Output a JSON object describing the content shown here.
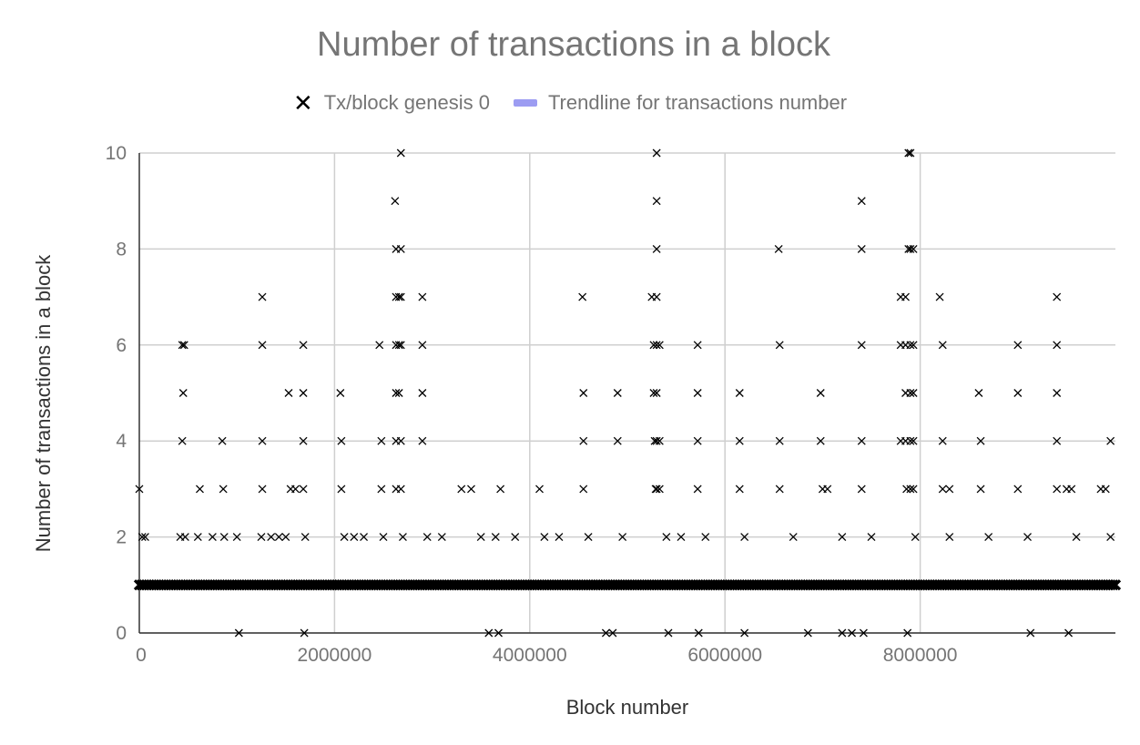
{
  "chart_data": {
    "type": "scatter",
    "title": "Number of transactions in a block",
    "xlabel": "Block number",
    "ylabel": "Number of transactions in a block",
    "xlim": [
      0,
      10000000
    ],
    "ylim": [
      0,
      10
    ],
    "x_ticks": [
      "0",
      "2000000",
      "4000000",
      "6000000",
      "8000000"
    ],
    "y_ticks": [
      "0",
      "2",
      "4",
      "6",
      "8",
      "10"
    ],
    "grid": true,
    "legend_position": "top",
    "legend": [
      {
        "label": "Tx/block genesis 0",
        "marker": "x",
        "color": "#000000"
      },
      {
        "label": "Trendline for transactions number",
        "marker": "line",
        "color": "#9c9cf2"
      }
    ],
    "series": [
      {
        "name": "Tx/block genesis 0",
        "baseline_value": 1,
        "points": [
          [
            0,
            3
          ],
          [
            10000,
            1
          ],
          [
            30000,
            2
          ],
          [
            60000,
            2
          ],
          [
            440000,
            6
          ],
          [
            460000,
            6
          ],
          [
            450000,
            5
          ],
          [
            440000,
            4
          ],
          [
            420000,
            2
          ],
          [
            470000,
            2
          ],
          [
            620000,
            3
          ],
          [
            600000,
            2
          ],
          [
            750000,
            2
          ],
          [
            850000,
            4
          ],
          [
            860000,
            3
          ],
          [
            870000,
            2
          ],
          [
            1020000,
            0
          ],
          [
            1000000,
            2
          ],
          [
            1260000,
            7
          ],
          [
            1260000,
            6
          ],
          [
            1260000,
            4
          ],
          [
            1260000,
            3
          ],
          [
            1250000,
            2
          ],
          [
            1350000,
            2
          ],
          [
            1430000,
            2
          ],
          [
            1500000,
            2
          ],
          [
            1530000,
            5
          ],
          [
            1550000,
            3
          ],
          [
            1600000,
            3
          ],
          [
            1680000,
            6
          ],
          [
            1680000,
            5
          ],
          [
            1680000,
            4
          ],
          [
            1680000,
            3
          ],
          [
            1690000,
            0
          ],
          [
            1700000,
            2
          ],
          [
            2060000,
            5
          ],
          [
            2070000,
            4
          ],
          [
            2070000,
            3
          ],
          [
            2100000,
            2
          ],
          [
            2200000,
            2
          ],
          [
            2300000,
            2
          ],
          [
            2460000,
            6
          ],
          [
            2480000,
            4
          ],
          [
            2480000,
            3
          ],
          [
            2500000,
            2
          ],
          [
            2620000,
            9
          ],
          [
            2630000,
            8
          ],
          [
            2630000,
            7
          ],
          [
            2630000,
            6
          ],
          [
            2630000,
            5
          ],
          [
            2630000,
            4
          ],
          [
            2630000,
            3
          ],
          [
            2660000,
            7
          ],
          [
            2660000,
            6
          ],
          [
            2660000,
            5
          ],
          [
            2680000,
            10
          ],
          [
            2680000,
            8
          ],
          [
            2680000,
            7
          ],
          [
            2680000,
            6
          ],
          [
            2680000,
            4
          ],
          [
            2680000,
            3
          ],
          [
            2700000,
            2
          ],
          [
            2900000,
            7
          ],
          [
            2900000,
            6
          ],
          [
            2900000,
            5
          ],
          [
            2900000,
            4
          ],
          [
            2950000,
            2
          ],
          [
            3100000,
            2
          ],
          [
            3300000,
            3
          ],
          [
            3400000,
            3
          ],
          [
            3500000,
            2
          ],
          [
            3580000,
            0
          ],
          [
            3650000,
            2
          ],
          [
            3680000,
            0
          ],
          [
            3700000,
            3
          ],
          [
            3850000,
            2
          ],
          [
            4100000,
            3
          ],
          [
            4150000,
            2
          ],
          [
            4300000,
            2
          ],
          [
            4540000,
            7
          ],
          [
            4550000,
            5
          ],
          [
            4550000,
            4
          ],
          [
            4550000,
            3
          ],
          [
            4600000,
            2
          ],
          [
            4780000,
            0
          ],
          [
            4850000,
            0
          ],
          [
            4900000,
            5
          ],
          [
            4900000,
            4
          ],
          [
            4950000,
            2
          ],
          [
            5250000,
            7
          ],
          [
            5270000,
            6
          ],
          [
            5270000,
            5
          ],
          [
            5280000,
            4
          ],
          [
            5290000,
            3
          ],
          [
            5300000,
            10
          ],
          [
            5300000,
            9
          ],
          [
            5300000,
            8
          ],
          [
            5300000,
            7
          ],
          [
            5300000,
            6
          ],
          [
            5300000,
            5
          ],
          [
            5300000,
            4
          ],
          [
            5300000,
            3
          ],
          [
            5330000,
            4
          ],
          [
            5330000,
            3
          ],
          [
            5330000,
            6
          ],
          [
            5400000,
            2
          ],
          [
            5420000,
            0
          ],
          [
            5550000,
            2
          ],
          [
            5720000,
            6
          ],
          [
            5720000,
            5
          ],
          [
            5720000,
            4
          ],
          [
            5720000,
            3
          ],
          [
            5730000,
            0
          ],
          [
            5800000,
            2
          ],
          [
            6150000,
            5
          ],
          [
            6150000,
            4
          ],
          [
            6150000,
            3
          ],
          [
            6200000,
            2
          ],
          [
            6200000,
            0
          ],
          [
            6550000,
            8
          ],
          [
            6560000,
            6
          ],
          [
            6560000,
            4
          ],
          [
            6560000,
            3
          ],
          [
            6700000,
            2
          ],
          [
            6850000,
            0
          ],
          [
            6980000,
            5
          ],
          [
            6980000,
            4
          ],
          [
            7000000,
            3
          ],
          [
            7050000,
            3
          ],
          [
            7200000,
            0
          ],
          [
            7200000,
            2
          ],
          [
            7300000,
            0
          ],
          [
            7400000,
            9
          ],
          [
            7400000,
            8
          ],
          [
            7400000,
            6
          ],
          [
            7400000,
            4
          ],
          [
            7400000,
            3
          ],
          [
            7420000,
            0
          ],
          [
            7500000,
            2
          ],
          [
            7800000,
            7
          ],
          [
            7800000,
            6
          ],
          [
            7800000,
            4
          ],
          [
            7850000,
            7
          ],
          [
            7850000,
            6
          ],
          [
            7850000,
            5
          ],
          [
            7850000,
            4
          ],
          [
            7860000,
            3
          ],
          [
            7870000,
            0
          ],
          [
            7880000,
            10
          ],
          [
            7880000,
            8
          ],
          [
            7900000,
            10
          ],
          [
            7900000,
            8
          ],
          [
            7900000,
            6
          ],
          [
            7900000,
            5
          ],
          [
            7900000,
            4
          ],
          [
            7900000,
            3
          ],
          [
            7930000,
            8
          ],
          [
            7930000,
            6
          ],
          [
            7930000,
            5
          ],
          [
            7930000,
            4
          ],
          [
            7930000,
            3
          ],
          [
            7950000,
            2
          ],
          [
            8200000,
            7
          ],
          [
            8230000,
            6
          ],
          [
            8230000,
            4
          ],
          [
            8230000,
            3
          ],
          [
            8300000,
            3
          ],
          [
            8300000,
            2
          ],
          [
            8600000,
            5
          ],
          [
            8620000,
            4
          ],
          [
            8620000,
            3
          ],
          [
            8700000,
            2
          ],
          [
            9000000,
            6
          ],
          [
            9000000,
            5
          ],
          [
            9000000,
            3
          ],
          [
            9100000,
            2
          ],
          [
            9130000,
            0
          ],
          [
            9400000,
            7
          ],
          [
            9400000,
            6
          ],
          [
            9400000,
            5
          ],
          [
            9400000,
            4
          ],
          [
            9400000,
            3
          ],
          [
            9500000,
            3
          ],
          [
            9520000,
            0
          ],
          [
            9550000,
            3
          ],
          [
            9600000,
            2
          ],
          [
            9850000,
            3
          ],
          [
            9900000,
            3
          ],
          [
            9950000,
            4
          ],
          [
            9950000,
            2
          ]
        ]
      }
    ]
  }
}
